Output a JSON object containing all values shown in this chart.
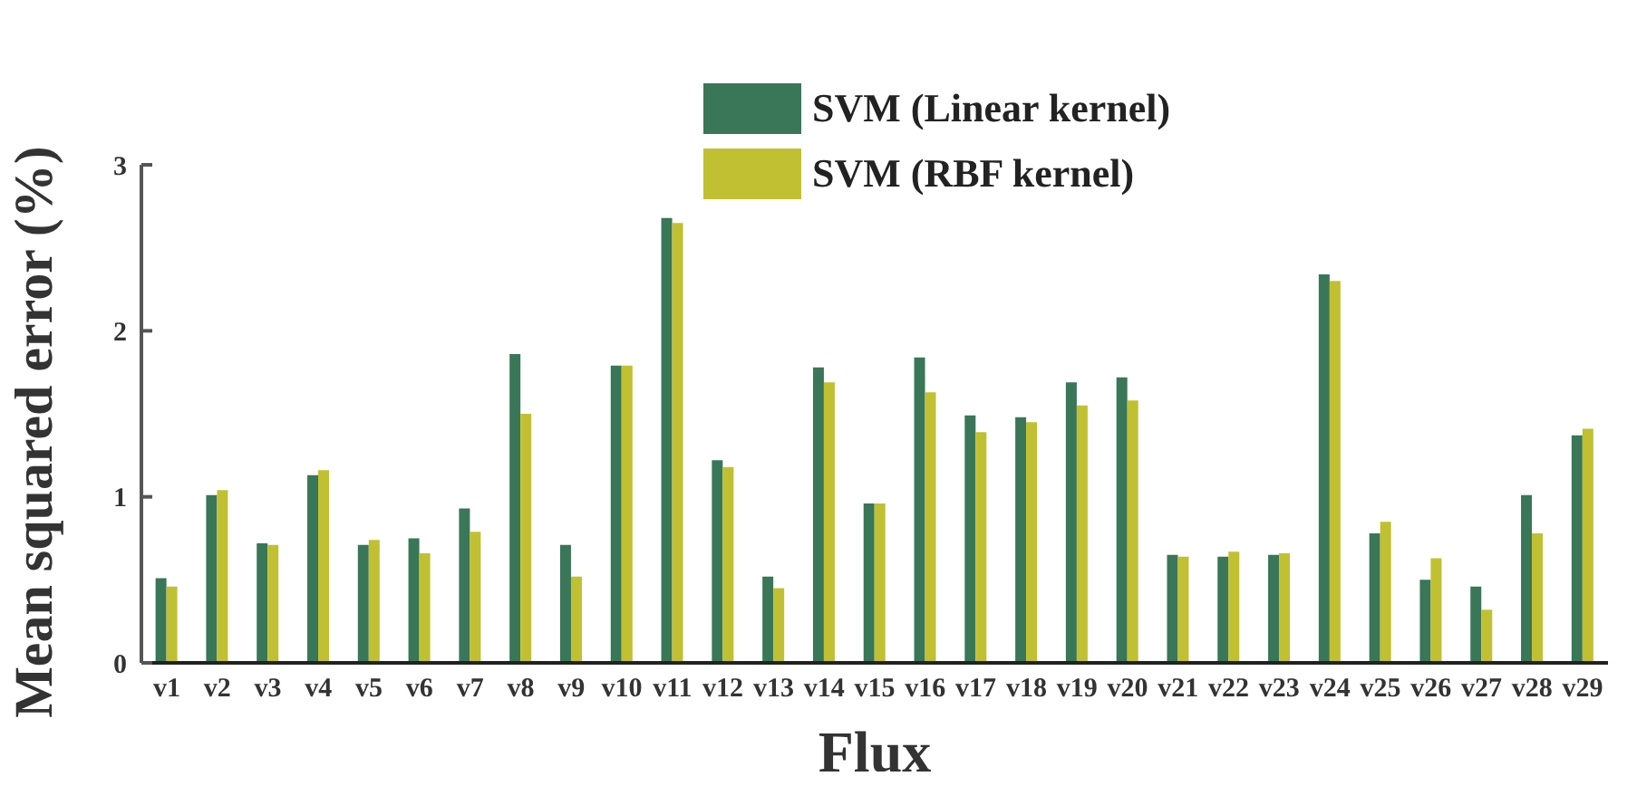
{
  "chart_data": {
    "type": "bar",
    "xlabel": "Flux",
    "ylabel": "Mean squared error (%)",
    "categories": [
      "v1",
      "v2",
      "v3",
      "v4",
      "v5",
      "v6",
      "v7",
      "v8",
      "v9",
      "v10",
      "v11",
      "v12",
      "v13",
      "v14",
      "v15",
      "v16",
      "v17",
      "v18",
      "v19",
      "v20",
      "v21",
      "v22",
      "v23",
      "v24",
      "v25",
      "v26",
      "v27",
      "v28",
      "v29"
    ],
    "series": [
      {
        "name": "SVM (Linear kernel)",
        "color": "#3a7658",
        "values": [
          0.51,
          1.01,
          0.72,
          1.13,
          0.71,
          0.75,
          0.93,
          1.86,
          0.71,
          1.79,
          2.68,
          1.22,
          0.52,
          1.78,
          0.96,
          1.84,
          1.49,
          1.48,
          1.69,
          1.72,
          0.65,
          0.64,
          0.65,
          2.34,
          0.78,
          0.5,
          0.46,
          1.01,
          1.37
        ]
      },
      {
        "name": "SVM (RBF kernel)",
        "color": "#c0c032",
        "values": [
          0.46,
          1.04,
          0.71,
          1.16,
          0.74,
          0.66,
          0.79,
          1.5,
          0.52,
          1.79,
          2.65,
          1.18,
          0.45,
          1.69,
          0.96,
          1.63,
          1.39,
          1.45,
          1.55,
          1.58,
          0.64,
          0.67,
          0.66,
          2.3,
          0.85,
          0.63,
          0.32,
          0.78,
          1.41
        ]
      }
    ],
    "ylim": [
      0,
      3
    ],
    "yticks": [
      0,
      1,
      2,
      3
    ],
    "grid": false,
    "legend": "top"
  }
}
